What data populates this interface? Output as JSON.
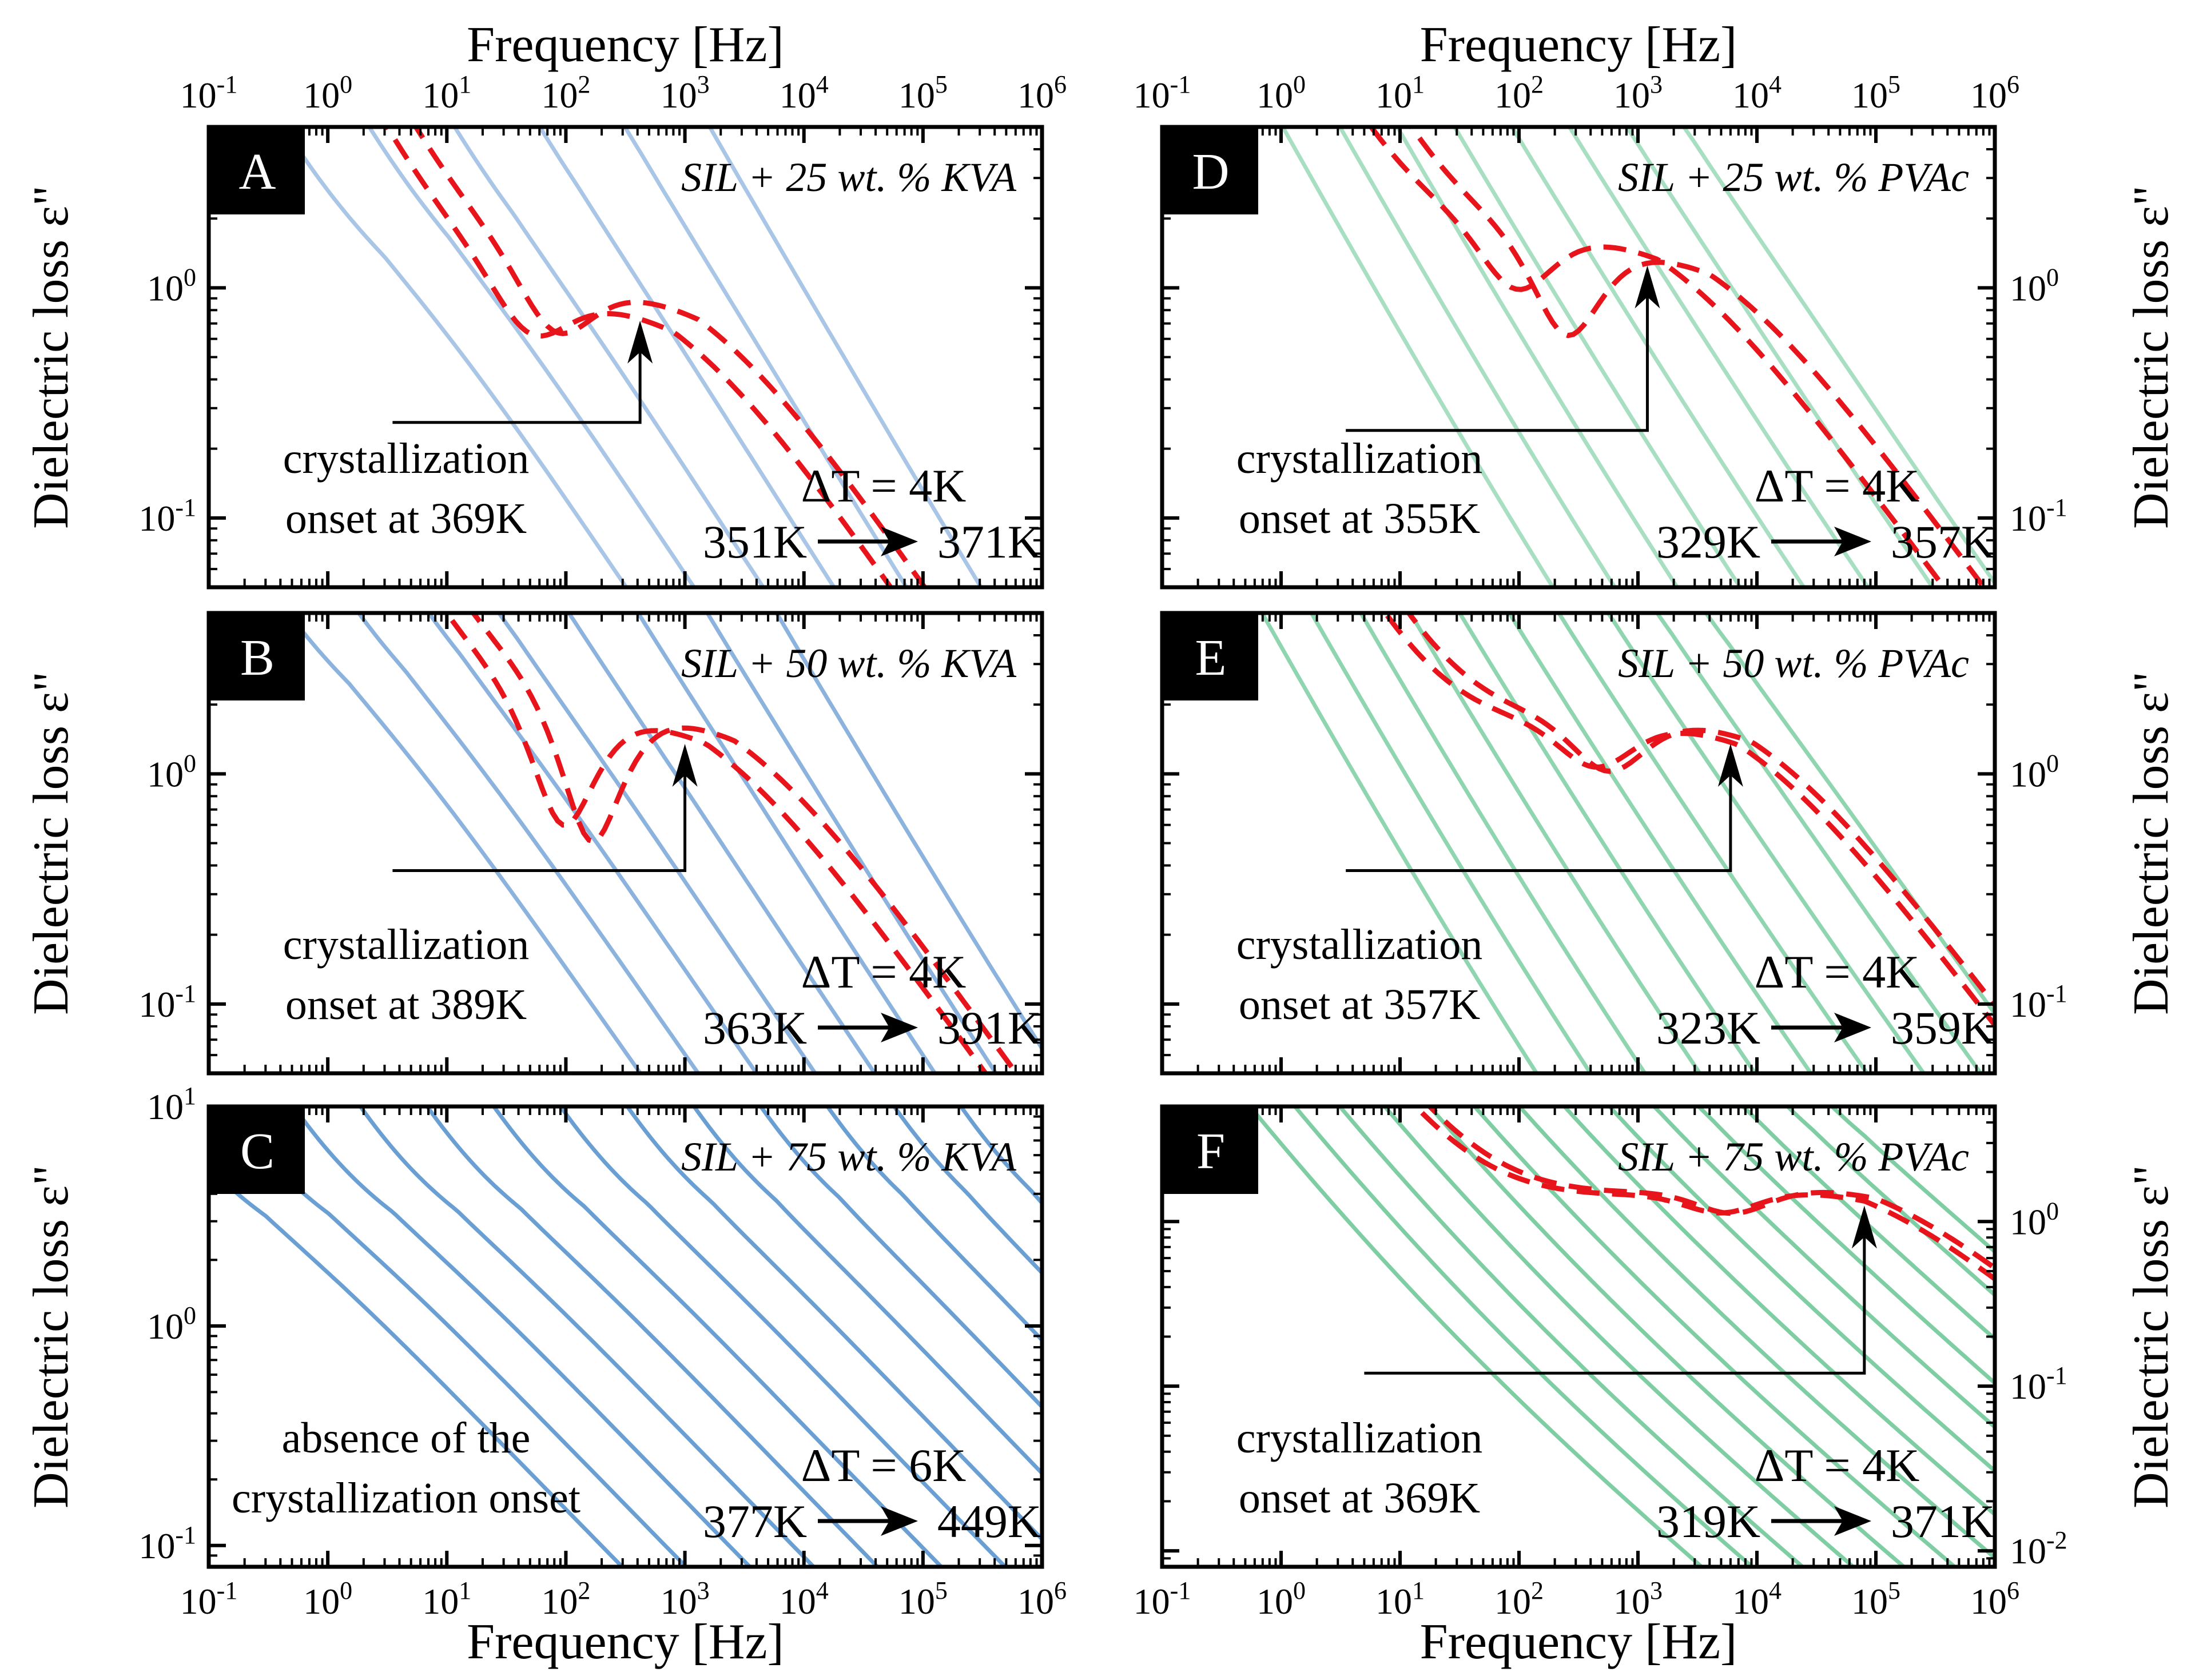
{
  "figure": {
    "x_axis_title": "Frequency [Hz]",
    "y_axis_title": "Dielectric loss ε\""
  },
  "chart_data": [
    {
      "id": "A",
      "type": "line",
      "column": "left",
      "row": 0,
      "title_cut": false,
      "label": "A",
      "title": "SIL + 25 wt. % KVA",
      "xlabel_top": "Frequency [Hz]",
      "ylabel": "Dielectric loss ε\"",
      "ylabel_side": "left",
      "xscale": "log",
      "yscale": "log",
      "xlim": [
        0.1,
        1000000
      ],
      "ylim": [
        0.05,
        5
      ],
      "xticks": [
        "10^-1",
        "10^0",
        "10^1",
        "10^2",
        "10^3",
        "10^4",
        "10^5",
        "10^6"
      ],
      "yticks": [
        {
          "value": 1,
          "label": "10^0"
        },
        {
          "value": 0.1,
          "label": "10^-1"
        }
      ],
      "series_color": "#a9c6e6",
      "n_curves": 6,
      "plateau": 0.95,
      "peak_f_start": 3,
      "peak_f_end": 1500,
      "dc_start": 2.0,
      "dc_end": 8000,
      "high_slope": 0.75,
      "low_slope": 1.0,
      "crystallized_curves": [
        {
          "peak": 0.75,
          "f_peak": 800,
          "dc": 20,
          "dip": 0.4
        },
        {
          "peak": 0.85,
          "f_peak": 1300,
          "dc": 30,
          "dip": 0.45
        }
      ],
      "annotation": [
        "crystallization",
        "onset at 369K"
      ],
      "arrow_target_freq": 420,
      "arrow_target_y": 0.72,
      "arrow_base_y": 0.26,
      "arrow_start_freq": 3.5,
      "delta_T": "ΔT = 4K",
      "temp_from": "351K",
      "temp_to": "371K"
    },
    {
      "id": "B",
      "type": "line",
      "column": "left",
      "row": 1,
      "label": "B",
      "title": "SIL + 50 wt. % KVA",
      "ylabel": "Dielectric loss ε\"",
      "ylabel_side": "left",
      "xscale": "log",
      "yscale": "log",
      "xlim": [
        0.1,
        1000000
      ],
      "ylim": [
        0.05,
        5
      ],
      "yticks": [
        {
          "value": 1,
          "label": "10^0"
        },
        {
          "value": 0.1,
          "label": "10^-1"
        }
      ],
      "series_color": "#8cb3de",
      "n_curves": 8,
      "plateau": 1.7,
      "peak_f_start": 1.5,
      "peak_f_end": 3000,
      "dc_start": 1.0,
      "dc_end": 15000,
      "high_slope": 0.72,
      "low_slope": 1.0,
      "crystallized_curves": [
        {
          "peak": 1.55,
          "f_peak": 1500,
          "dc": 25,
          "dip": 0.7
        },
        {
          "peak": 1.6,
          "f_peak": 2600,
          "dc": 40,
          "dip": 0.75
        }
      ],
      "annotation": [
        "crystallization",
        "onset at 389K"
      ],
      "arrow_target_freq": 1000,
      "arrow_target_y": 1.35,
      "arrow_base_y": 0.38,
      "arrow_start_freq": 3.5,
      "delta_T": "ΔT = 4K",
      "temp_from": "363K",
      "temp_to": "391K"
    },
    {
      "id": "C",
      "type": "line",
      "column": "left",
      "row": 2,
      "label": "C",
      "title": "SIL + 75 wt. % KVA",
      "ylabel": "Dielectric loss ε\"",
      "ylabel_side": "left",
      "xlabel_bottom": "Frequency [Hz]",
      "xscale": "log",
      "yscale": "log",
      "xlim": [
        0.1,
        1000000
      ],
      "ylim": [
        0.08,
        10
      ],
      "xticks": [
        "10^-1",
        "10^0",
        "10^1",
        "10^2",
        "10^3",
        "10^4",
        "10^5",
        "10^6"
      ],
      "yticks": [
        {
          "value": 10,
          "label": "10^1"
        },
        {
          "value": 1,
          "label": "10^0"
        },
        {
          "value": 0.1,
          "label": "10^-1"
        }
      ],
      "series_color": "#6a9fd3",
      "n_curves": 13,
      "plateau": 2.2,
      "peak_f_start": 0.3,
      "peak_f_end": 800000,
      "dc_start": 0.15,
      "dc_end": 800000,
      "high_slope": 0.55,
      "low_slope": 1.0,
      "crystallized_curves": [],
      "annotation": [
        "absence of the",
        "crystallization onset"
      ],
      "delta_T": "ΔT = 6K",
      "temp_from": "377K",
      "temp_to": "449K"
    },
    {
      "id": "D",
      "type": "line",
      "column": "right",
      "row": 0,
      "label": "D",
      "title": "SIL + 25 wt. % PVAc",
      "xlabel_top": "Frequency [Hz]",
      "ylabel": "Dielectric loss ε\"",
      "ylabel_side": "right",
      "xscale": "log",
      "yscale": "log",
      "xlim": [
        0.1,
        1000000
      ],
      "ylim": [
        0.05,
        5
      ],
      "xticks": [
        "10^-1",
        "10^0",
        "10^1",
        "10^2",
        "10^3",
        "10^4",
        "10^5",
        "10^6"
      ],
      "yticks": [
        {
          "value": 1,
          "label": "10^0"
        },
        {
          "value": 0.1,
          "label": "10^-1"
        }
      ],
      "series_color": "#a8dfc2",
      "n_curves": 8,
      "plateau": 1.6,
      "peak_f_start": 0.3,
      "peak_f_end": 3000,
      "dc_start": 3.0,
      "dc_end": 6000,
      "high_slope": 0.7,
      "low_slope": 1.0,
      "crystallized_curves": [
        {
          "peak": 1.5,
          "f_peak": 1500,
          "dc": 15,
          "dip": 0.45
        },
        {
          "peak": 1.3,
          "f_peak": 4000,
          "dc": 40,
          "dip": 0.6
        }
      ],
      "annotation": [
        "crystallization",
        "onset at 355K"
      ],
      "arrow_target_freq": 1200,
      "arrow_target_y": 1.25,
      "arrow_base_y": 0.24,
      "arrow_start_freq": 3.5,
      "delta_T": "ΔT = 4K",
      "temp_from": "329K",
      "temp_to": "357K"
    },
    {
      "id": "E",
      "type": "line",
      "column": "right",
      "row": 1,
      "label": "E",
      "title": "SIL + 50 wt. % PVAc",
      "ylabel": "Dielectric loss ε\"",
      "ylabel_side": "right",
      "xscale": "log",
      "yscale": "log",
      "xlim": [
        0.1,
        1000000
      ],
      "ylim": [
        0.05,
        5
      ],
      "yticks": [
        {
          "value": 1,
          "label": "10^0"
        },
        {
          "value": 0.1,
          "label": "10^-1"
        }
      ],
      "series_color": "#8fd5b0",
      "n_curves": 10,
      "plateau": 1.6,
      "peak_f_start": 0.2,
      "peak_f_end": 6000,
      "dc_start": 2.0,
      "dc_end": 9000,
      "high_slope": 0.68,
      "low_slope": 1.0,
      "crystallized_curves": [
        {
          "peak": 1.5,
          "f_peak": 7000,
          "dc": 20,
          "dip": 0.35
        },
        {
          "peak": 1.55,
          "f_peak": 9000,
          "dc": 30,
          "dip": 0.4
        }
      ],
      "annotation": [
        "crystallization",
        "onset at 357K"
      ],
      "arrow_target_freq": 6000,
      "arrow_target_y": 1.35,
      "arrow_base_y": 0.38,
      "arrow_start_freq": 3.5,
      "delta_T": "ΔT = 4K",
      "temp_from": "323K",
      "temp_to": "359K"
    },
    {
      "id": "F",
      "type": "line",
      "column": "right",
      "row": 2,
      "label": "F",
      "title": "SIL + 75 wt. % PVAc",
      "ylabel": "Dielectric loss ε\"",
      "ylabel_side": "right",
      "xlabel_bottom": "Frequency [Hz]",
      "xscale": "log",
      "yscale": "log",
      "xlim": [
        0.1,
        1000000
      ],
      "ylim": [
        0.008,
        5
      ],
      "xticks": [
        "10^-1",
        "10^0",
        "10^1",
        "10^2",
        "10^3",
        "10^4",
        "10^5",
        "10^6"
      ],
      "yticks": [
        {
          "value": 1,
          "label": "10^0"
        },
        {
          "value": 0.1,
          "label": "10^-1"
        },
        {
          "value": 0.01,
          "label": "10^-2"
        }
      ],
      "series_color": "#7fcea3",
      "n_curves": 14,
      "plateau": 1.6,
      "peak_f_start": 0.2,
      "peak_f_end": 80000,
      "dc_start": 1.5,
      "dc_end": 100000,
      "high_slope": 0.6,
      "low_slope": 1.0,
      "crystallized_curves": [
        {
          "peak": 1.4,
          "f_peak": 80000,
          "dc": 40,
          "dip": 0.25
        },
        {
          "peak": 1.45,
          "f_peak": 100000,
          "dc": 50,
          "dip": 0.28
        }
      ],
      "annotation": [
        "crystallization",
        "onset at 369K"
      ],
      "arrow_target_freq": 80000,
      "arrow_target_y": 1.25,
      "arrow_base_y": 0.12,
      "arrow_start_freq": 5.0,
      "delta_T": "ΔT = 4K",
      "temp_from": "319K",
      "temp_to": "371K"
    }
  ],
  "colors": {
    "crystallized": "#e8141c",
    "arrow": "#000000",
    "label_bg": "#000000",
    "label_fg": "#ffffff",
    "frame": "#000000"
  }
}
